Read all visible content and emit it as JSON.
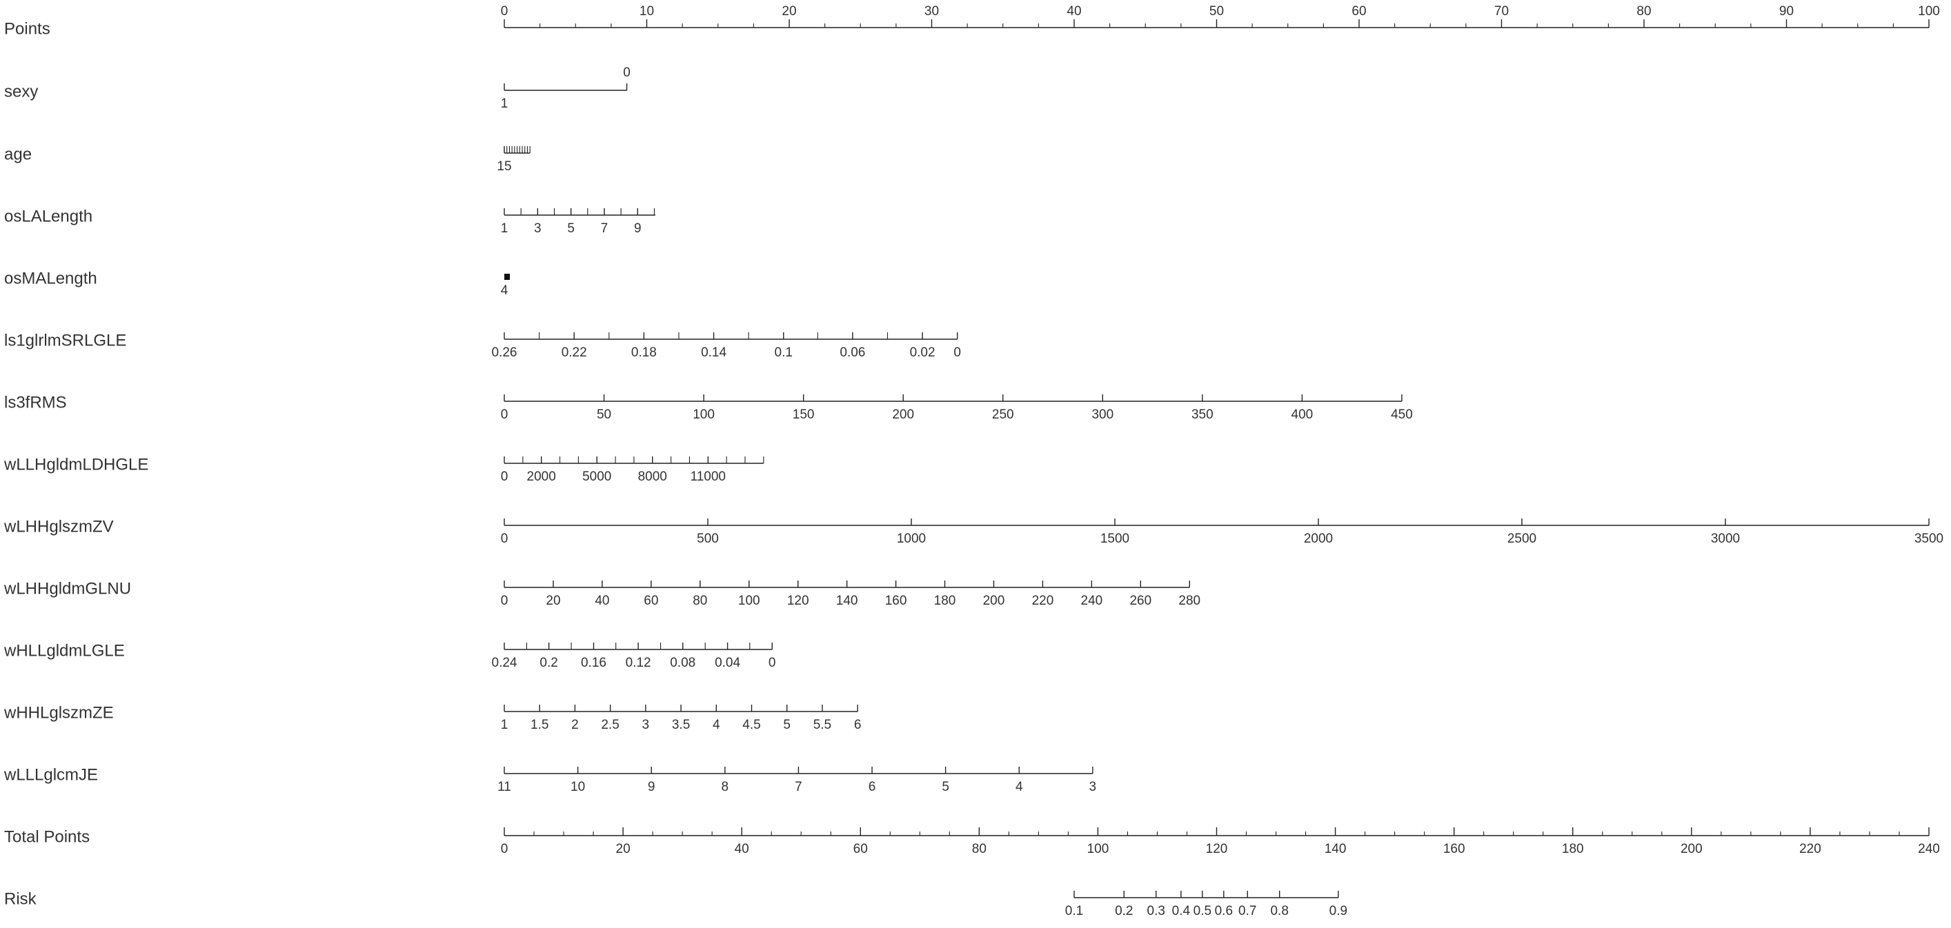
{
  "chart_data": {
    "type": "nomogram",
    "title": "",
    "points_range": [
      0,
      100
    ],
    "rows": [
      {
        "label": "Points",
        "kind": "points",
        "ticks": [
          {
            "v": 0,
            "t": "0"
          },
          {
            "v": 10,
            "t": "10"
          },
          {
            "v": 20,
            "t": "20"
          },
          {
            "v": 30,
            "t": "30"
          },
          {
            "v": 40,
            "t": "40"
          },
          {
            "v": 50,
            "t": "50"
          },
          {
            "v": 60,
            "t": "60"
          },
          {
            "v": 70,
            "t": "70"
          },
          {
            "v": 80,
            "t": "80"
          },
          {
            "v": 90,
            "t": "90"
          },
          {
            "v": 100,
            "t": "100"
          }
        ],
        "minor_step": 2.5,
        "labels_above": true
      },
      {
        "label": "sexy",
        "kind": "variable",
        "points_at": [
          0,
          8.6
        ],
        "ticks": [
          {
            "p": 8.6,
            "t": "0",
            "above": true
          },
          {
            "p": 0,
            "t": "1"
          }
        ]
      },
      {
        "label": "age",
        "kind": "variable",
        "points_at": [
          0,
          1.8
        ],
        "ticks": [
          {
            "p": 0,
            "t": "15"
          }
        ],
        "dense": 11
      },
      {
        "label": "osLALength",
        "kind": "variable",
        "points_at": [
          0,
          10.6
        ],
        "ticks": [
          {
            "p": 0,
            "t": "1"
          },
          {
            "p": 2.34,
            "t": "3"
          },
          {
            "p": 4.68,
            "t": "5"
          },
          {
            "p": 7.02,
            "t": "7"
          },
          {
            "p": 9.36,
            "t": "9"
          }
        ],
        "minor": [
          1.17,
          3.51,
          5.85,
          8.19,
          10.53
        ]
      },
      {
        "label": "osMALength",
        "kind": "variable",
        "points_at": [
          0,
          0.35
        ],
        "ticks": [
          {
            "p": 0,
            "t": "4"
          }
        ],
        "block": true
      },
      {
        "label": "ls1glrlmSRLGLE",
        "kind": "variable",
        "points_at": [
          0,
          31.8
        ],
        "ticks": [
          {
            "p": 0,
            "t": "0.26"
          },
          {
            "p": 4.9,
            "t": "0.22"
          },
          {
            "p": 9.8,
            "t": "0.18"
          },
          {
            "p": 14.7,
            "t": "0.14"
          },
          {
            "p": 19.6,
            "t": "0.1"
          },
          {
            "p": 24.45,
            "t": "0.06"
          },
          {
            "p": 29.35,
            "t": "0.02"
          },
          {
            "p": 31.8,
            "t": "0"
          }
        ],
        "minor": [
          2.45,
          7.35,
          12.25,
          17.15,
          22.0,
          26.9
        ]
      },
      {
        "label": "ls3fRMS",
        "kind": "variable",
        "points_at": [
          0,
          63
        ],
        "ticks": [
          {
            "p": 0,
            "t": "0"
          },
          {
            "p": 7,
            "t": "50"
          },
          {
            "p": 14,
            "t": "100"
          },
          {
            "p": 21,
            "t": "150"
          },
          {
            "p": 28,
            "t": "200"
          },
          {
            "p": 35,
            "t": "250"
          },
          {
            "p": 42,
            "t": "300"
          },
          {
            "p": 49,
            "t": "350"
          },
          {
            "p": 56,
            "t": "400"
          },
          {
            "p": 63,
            "t": "450"
          }
        ]
      },
      {
        "label": "wLLHgldmLDHGLE",
        "kind": "variable",
        "points_at": [
          0,
          18.2
        ],
        "ticks": [
          {
            "p": 0,
            "t": "0"
          },
          {
            "p": 2.6,
            "t": "2000"
          },
          {
            "p": 6.5,
            "t": "5000"
          },
          {
            "p": 10.4,
            "t": "8000"
          },
          {
            "p": 14.3,
            "t": "11000"
          }
        ],
        "minor": [
          1.3,
          3.9,
          5.2,
          7.8,
          9.1,
          11.7,
          13.0,
          15.6,
          16.9,
          18.2
        ]
      },
      {
        "label": "wLHHglszmZV",
        "kind": "variable",
        "points_at": [
          0,
          100
        ],
        "ticks": [
          {
            "p": 0,
            "t": "0"
          },
          {
            "p": 14.286,
            "t": "500"
          },
          {
            "p": 28.571,
            "t": "1000"
          },
          {
            "p": 42.857,
            "t": "1500"
          },
          {
            "p": 57.143,
            "t": "2000"
          },
          {
            "p": 71.429,
            "t": "2500"
          },
          {
            "p": 85.714,
            "t": "3000"
          },
          {
            "p": 100,
            "t": "3500"
          }
        ]
      },
      {
        "label": "wLHHgldmGLNU",
        "kind": "variable",
        "points_at": [
          0,
          48.1
        ],
        "ticks": [
          {
            "p": 0,
            "t": "0"
          },
          {
            "p": 3.436,
            "t": "20"
          },
          {
            "p": 6.871,
            "t": "40"
          },
          {
            "p": 10.307,
            "t": "60"
          },
          {
            "p": 13.743,
            "t": "80"
          },
          {
            "p": 17.179,
            "t": "100"
          },
          {
            "p": 20.614,
            "t": "120"
          },
          {
            "p": 24.05,
            "t": "140"
          },
          {
            "p": 27.486,
            "t": "160"
          },
          {
            "p": 30.921,
            "t": "180"
          },
          {
            "p": 34.357,
            "t": "200"
          },
          {
            "p": 37.793,
            "t": "220"
          },
          {
            "p": 41.229,
            "t": "240"
          },
          {
            "p": 44.664,
            "t": "260"
          },
          {
            "p": 48.1,
            "t": "280"
          }
        ]
      },
      {
        "label": "wHLLgldmLGLE",
        "kind": "variable",
        "points_at": [
          0,
          18.8
        ],
        "ticks": [
          {
            "p": 0,
            "t": "0.24"
          },
          {
            "p": 3.13,
            "t": "0.2"
          },
          {
            "p": 6.27,
            "t": "0.16"
          },
          {
            "p": 9.4,
            "t": "0.12"
          },
          {
            "p": 12.53,
            "t": "0.08"
          },
          {
            "p": 15.67,
            "t": "0.04"
          },
          {
            "p": 18.8,
            "t": "0"
          }
        ],
        "minor": [
          1.57,
          4.7,
          7.83,
          10.97,
          14.1,
          17.23
        ]
      },
      {
        "label": "wHHLglszmZE",
        "kind": "variable",
        "points_at": [
          0,
          24.8
        ],
        "ticks": [
          {
            "p": 0,
            "t": "1"
          },
          {
            "p": 2.48,
            "t": "1.5"
          },
          {
            "p": 4.96,
            "t": "2"
          },
          {
            "p": 7.44,
            "t": "2.5"
          },
          {
            "p": 9.92,
            "t": "3"
          },
          {
            "p": 12.4,
            "t": "3.5"
          },
          {
            "p": 14.88,
            "t": "4"
          },
          {
            "p": 17.36,
            "t": "4.5"
          },
          {
            "p": 19.84,
            "t": "5"
          },
          {
            "p": 22.32,
            "t": "5.5"
          },
          {
            "p": 24.8,
            "t": "6"
          }
        ]
      },
      {
        "label": "wLLLglcmJE",
        "kind": "variable",
        "points_at": [
          0,
          41.3
        ],
        "ticks": [
          {
            "p": 0,
            "t": "11"
          },
          {
            "p": 5.163,
            "t": "10"
          },
          {
            "p": 10.325,
            "t": "9"
          },
          {
            "p": 15.488,
            "t": "8"
          },
          {
            "p": 20.65,
            "t": "7"
          },
          {
            "p": 25.813,
            "t": "6"
          },
          {
            "p": 30.975,
            "t": "5"
          },
          {
            "p": 36.138,
            "t": "4"
          },
          {
            "p": 41.3,
            "t": "3"
          }
        ]
      },
      {
        "label": "Total Points",
        "kind": "total",
        "ticks": [
          {
            "v": 0,
            "t": "0"
          },
          {
            "v": 20,
            "t": "20"
          },
          {
            "v": 40,
            "t": "40"
          },
          {
            "v": 60,
            "t": "60"
          },
          {
            "v": 80,
            "t": "80"
          },
          {
            "v": 100,
            "t": "100"
          },
          {
            "v": 120,
            "t": "120"
          },
          {
            "v": 140,
            "t": "140"
          },
          {
            "v": 160,
            "t": "160"
          },
          {
            "v": 180,
            "t": "180"
          },
          {
            "v": 200,
            "t": "200"
          },
          {
            "v": 220,
            "t": "220"
          },
          {
            "v": 240,
            "t": "240"
          }
        ],
        "range": [
          0,
          240
        ],
        "minor_step": 5
      },
      {
        "label": "Risk",
        "kind": "risk",
        "total_points_range": [
          96,
          140.5
        ],
        "ticks": [
          {
            "tp": 96.0,
            "t": "0.1"
          },
          {
            "tp": 104.4,
            "t": "0.2"
          },
          {
            "tp": 109.8,
            "t": "0.3"
          },
          {
            "tp": 114.0,
            "t": "0.4"
          },
          {
            "tp": 117.6,
            "t": "0.5"
          },
          {
            "tp": 121.2,
            "t": "0.6"
          },
          {
            "tp": 125.2,
            "t": "0.7"
          },
          {
            "tp": 130.6,
            "t": "0.8"
          },
          {
            "tp": 140.5,
            "t": "0.9"
          }
        ]
      }
    ]
  }
}
